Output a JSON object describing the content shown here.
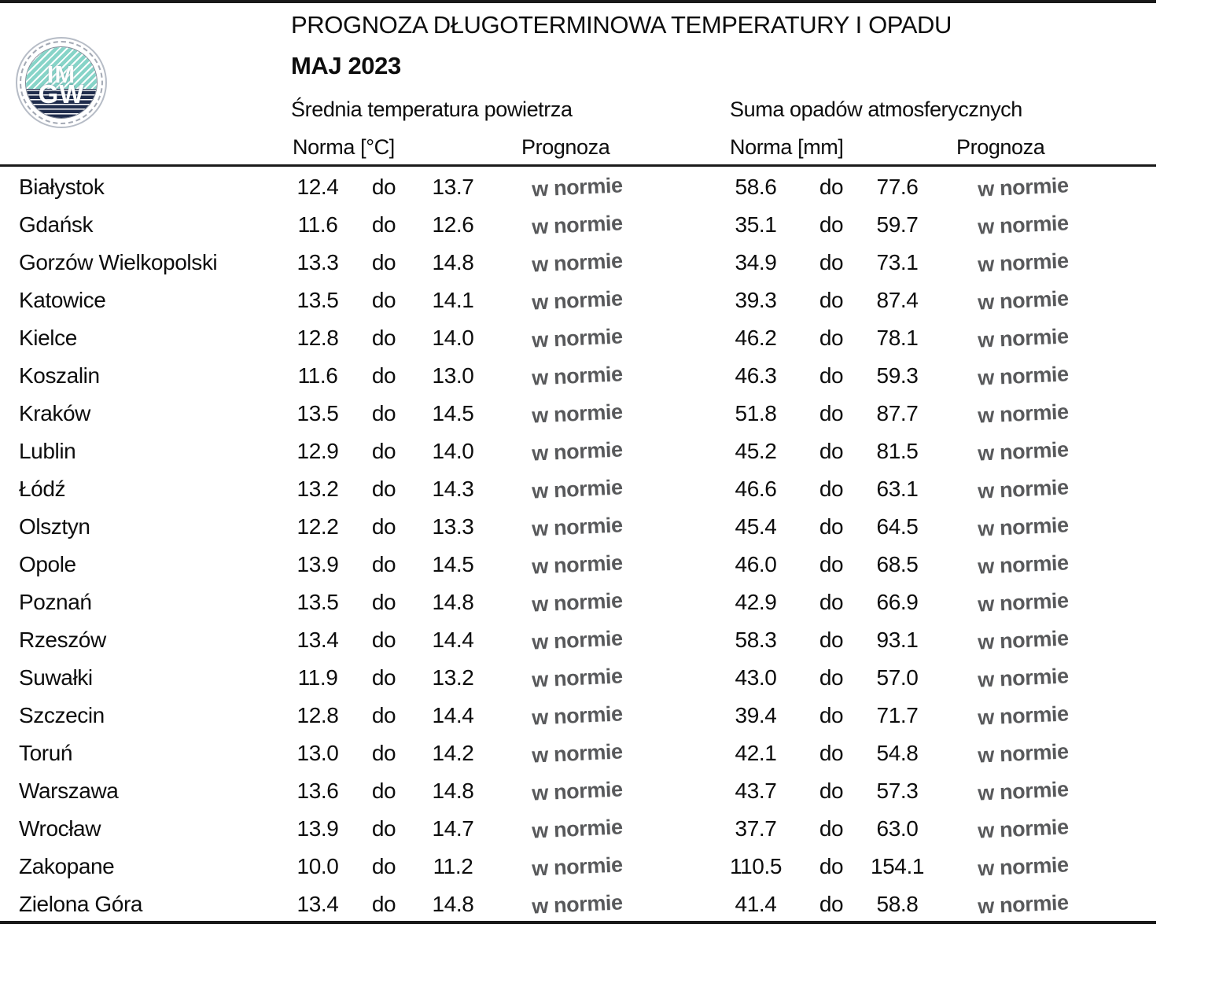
{
  "header": {
    "title": "PROGNOZA DŁUGOTERMINOWA TEMPERATURY I OPADU",
    "subtitle": "MAJ 2023",
    "temp_group": "Średnia temperatura powietrza",
    "precip_group": "Suma opadów atmosferycznych",
    "temp_norm_label": "Norma [°C]",
    "precip_norm_label": "Norma [mm]",
    "prognoza_label": "Prognoza",
    "logo_text_top": "IM",
    "logo_text_bottom": "GW"
  },
  "separator_word": "do",
  "rows": [
    {
      "city": "Białystok",
      "tmin": "12.4",
      "tmax": "13.7",
      "tforecast": "w normie",
      "pmin": "58.6",
      "pmax": "77.6",
      "pforecast": "w normie"
    },
    {
      "city": "Gdańsk",
      "tmin": "11.6",
      "tmax": "12.6",
      "tforecast": "w normie",
      "pmin": "35.1",
      "pmax": "59.7",
      "pforecast": "w normie"
    },
    {
      "city": "Gorzów Wielkopolski",
      "tmin": "13.3",
      "tmax": "14.8",
      "tforecast": "w normie",
      "pmin": "34.9",
      "pmax": "73.1",
      "pforecast": "w normie"
    },
    {
      "city": "Katowice",
      "tmin": "13.5",
      "tmax": "14.1",
      "tforecast": "w normie",
      "pmin": "39.3",
      "pmax": "87.4",
      "pforecast": "w normie"
    },
    {
      "city": "Kielce",
      "tmin": "12.8",
      "tmax": "14.0",
      "tforecast": "w normie",
      "pmin": "46.2",
      "pmax": "78.1",
      "pforecast": "w normie"
    },
    {
      "city": "Koszalin",
      "tmin": "11.6",
      "tmax": "13.0",
      "tforecast": "w normie",
      "pmin": "46.3",
      "pmax": "59.3",
      "pforecast": "w normie"
    },
    {
      "city": "Kraków",
      "tmin": "13.5",
      "tmax": "14.5",
      "tforecast": "w normie",
      "pmin": "51.8",
      "pmax": "87.7",
      "pforecast": "w normie"
    },
    {
      "city": "Lublin",
      "tmin": "12.9",
      "tmax": "14.0",
      "tforecast": "w normie",
      "pmin": "45.2",
      "pmax": "81.5",
      "pforecast": "w normie"
    },
    {
      "city": "Łódź",
      "tmin": "13.2",
      "tmax": "14.3",
      "tforecast": "w normie",
      "pmin": "46.6",
      "pmax": "63.1",
      "pforecast": "w normie"
    },
    {
      "city": "Olsztyn",
      "tmin": "12.2",
      "tmax": "13.3",
      "tforecast": "w normie",
      "pmin": "45.4",
      "pmax": "64.5",
      "pforecast": "w normie"
    },
    {
      "city": "Opole",
      "tmin": "13.9",
      "tmax": "14.5",
      "tforecast": "w normie",
      "pmin": "46.0",
      "pmax": "68.5",
      "pforecast": "w normie"
    },
    {
      "city": "Poznań",
      "tmin": "13.5",
      "tmax": "14.8",
      "tforecast": "w normie",
      "pmin": "42.9",
      "pmax": "66.9",
      "pforecast": "w normie"
    },
    {
      "city": "Rzeszów",
      "tmin": "13.4",
      "tmax": "14.4",
      "tforecast": "w normie",
      "pmin": "58.3",
      "pmax": "93.1",
      "pforecast": "w normie"
    },
    {
      "city": "Suwałki",
      "tmin": "11.9",
      "tmax": "13.2",
      "tforecast": "w normie",
      "pmin": "43.0",
      "pmax": "57.0",
      "pforecast": "w normie"
    },
    {
      "city": "Szczecin",
      "tmin": "12.8",
      "tmax": "14.4",
      "tforecast": "w normie",
      "pmin": "39.4",
      "pmax": "71.7",
      "pforecast": "w normie"
    },
    {
      "city": "Toruń",
      "tmin": "13.0",
      "tmax": "14.2",
      "tforecast": "w normie",
      "pmin": "42.1",
      "pmax": "54.8",
      "pforecast": "w normie"
    },
    {
      "city": "Warszawa",
      "tmin": "13.6",
      "tmax": "14.8",
      "tforecast": "w normie",
      "pmin": "43.7",
      "pmax": "57.3",
      "pforecast": "w normie"
    },
    {
      "city": "Wrocław",
      "tmin": "13.9",
      "tmax": "14.7",
      "tforecast": "w normie",
      "pmin": "37.7",
      "pmax": "63.0",
      "pforecast": "w normie"
    },
    {
      "city": "Zakopane",
      "tmin": "10.0",
      "tmax": "11.2",
      "tforecast": "w normie",
      "pmin": "110.5",
      "pmax": "154.1",
      "pforecast": "w normie"
    },
    {
      "city": "Zielona Góra",
      "tmin": "13.4",
      "tmax": "14.8",
      "tforecast": "w normie",
      "pmin": "41.4",
      "pmax": "58.8",
      "pforecast": "w normie"
    }
  ],
  "colors": {
    "forecast_text": "#58595b",
    "rule": "#1a1a1a",
    "logo_teal": "#87d4c8",
    "logo_navy": "#202d4d"
  }
}
